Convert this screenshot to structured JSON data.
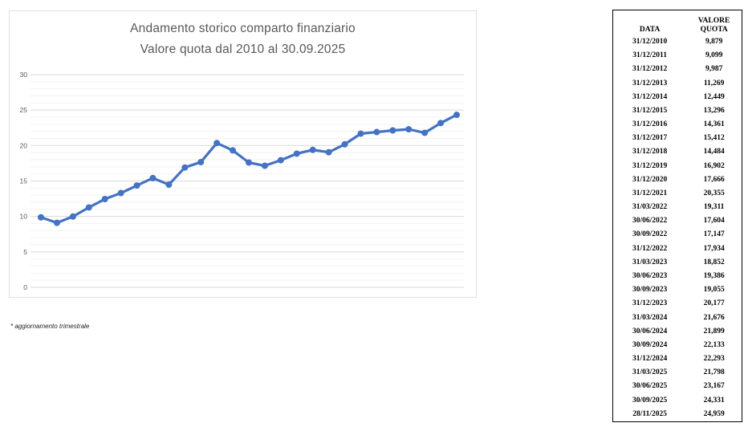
{
  "chart": {
    "title_line1": "Andamento storico comparto finanziario",
    "title_line2": "Valore quota dal 2010 al 30.09.2025",
    "footnote": "* aggiornamento trimestrale"
  },
  "chart_data": {
    "type": "line",
    "title": "Andamento storico comparto finanziario - Valore quota dal 2010 al 30.09.2025",
    "categories": [
      "31/12/2010",
      "31/12/2011",
      "31/12/2012",
      "31/12/2013",
      "31/12/2014",
      "31/12/2015",
      "31/12/2016",
      "31/12/2017",
      "31/12/2018",
      "31/12/2019",
      "31/12/2020",
      "31/12/2021",
      "31/03/2022",
      "30/06/2022",
      "30/09/2022",
      "31/12/2022",
      "31/03/2023",
      "30/06/2023",
      "30/09/2023",
      "31/12/2023",
      "31/03/2024",
      "30/06/2024",
      "30/09/2024",
      "31/12/2024",
      "31/03/2025",
      "30/06/2025",
      "30/09/2025"
    ],
    "values": [
      9.879,
      9.099,
      9.987,
      11.269,
      12.449,
      13.296,
      14.361,
      15.412,
      14.484,
      16.902,
      17.666,
      20.355,
      19.311,
      17.604,
      17.147,
      17.934,
      18.852,
      19.386,
      19.055,
      20.177,
      21.676,
      21.899,
      22.133,
      22.293,
      21.798,
      23.167,
      24.331
    ],
    "xlabel": "",
    "ylabel": "",
    "ylim": [
      0,
      30
    ],
    "yticks": [
      0,
      5,
      10,
      15,
      20,
      25,
      30
    ],
    "minor_grid_step": 1,
    "grid": "horizontal only",
    "legend": "none",
    "x_axis_labels_visible": false,
    "line_color": "#4472C4",
    "marker": "circle"
  },
  "table": {
    "header_date": "DATA",
    "header_quota": "VALORE QUOTA",
    "rows": [
      [
        "31/12/2010",
        "9,879"
      ],
      [
        "31/12/2011",
        "9,099"
      ],
      [
        "31/12/2012",
        "9,987"
      ],
      [
        "31/12/2013",
        "11,269"
      ],
      [
        "31/12/2014",
        "12,449"
      ],
      [
        "31/12/2015",
        "13,296"
      ],
      [
        "31/12/2016",
        "14,361"
      ],
      [
        "31/12/2017",
        "15,412"
      ],
      [
        "31/12/2018",
        "14,484"
      ],
      [
        "31/12/2019",
        "16,902"
      ],
      [
        "31/12/2020",
        "17,666"
      ],
      [
        "31/12/2021",
        "20,355"
      ],
      [
        "31/03/2022",
        "19,311"
      ],
      [
        "30/06/2022",
        "17,604"
      ],
      [
        "30/09/2022",
        "17,147"
      ],
      [
        "31/12/2022",
        "17,934"
      ],
      [
        "31/03/2023",
        "18,852"
      ],
      [
        "30/06/2023",
        "19,386"
      ],
      [
        "30/09/2023",
        "19,055"
      ],
      [
        "31/12/2023",
        "20,177"
      ],
      [
        "31/03/2024",
        "21,676"
      ],
      [
        "30/06/2024",
        "21,899"
      ],
      [
        "30/09/2024",
        "22,133"
      ],
      [
        "31/12/2024",
        "22,293"
      ],
      [
        "31/03/2025",
        "21,798"
      ],
      [
        "30/06/2025",
        "23,167"
      ],
      [
        "30/09/2025",
        "24,331"
      ],
      [
        "28/11/2025",
        "24,959"
      ]
    ]
  },
  "colors": {
    "accent_line": "#4472C4",
    "title_text": "#595959",
    "axis_text": "#595959",
    "major_gridline": "#d9d9d9",
    "minor_gridline": "#f2f2f2",
    "chart_border": "#e0e0e0",
    "table_border": "#000000",
    "background": "#ffffff"
  }
}
